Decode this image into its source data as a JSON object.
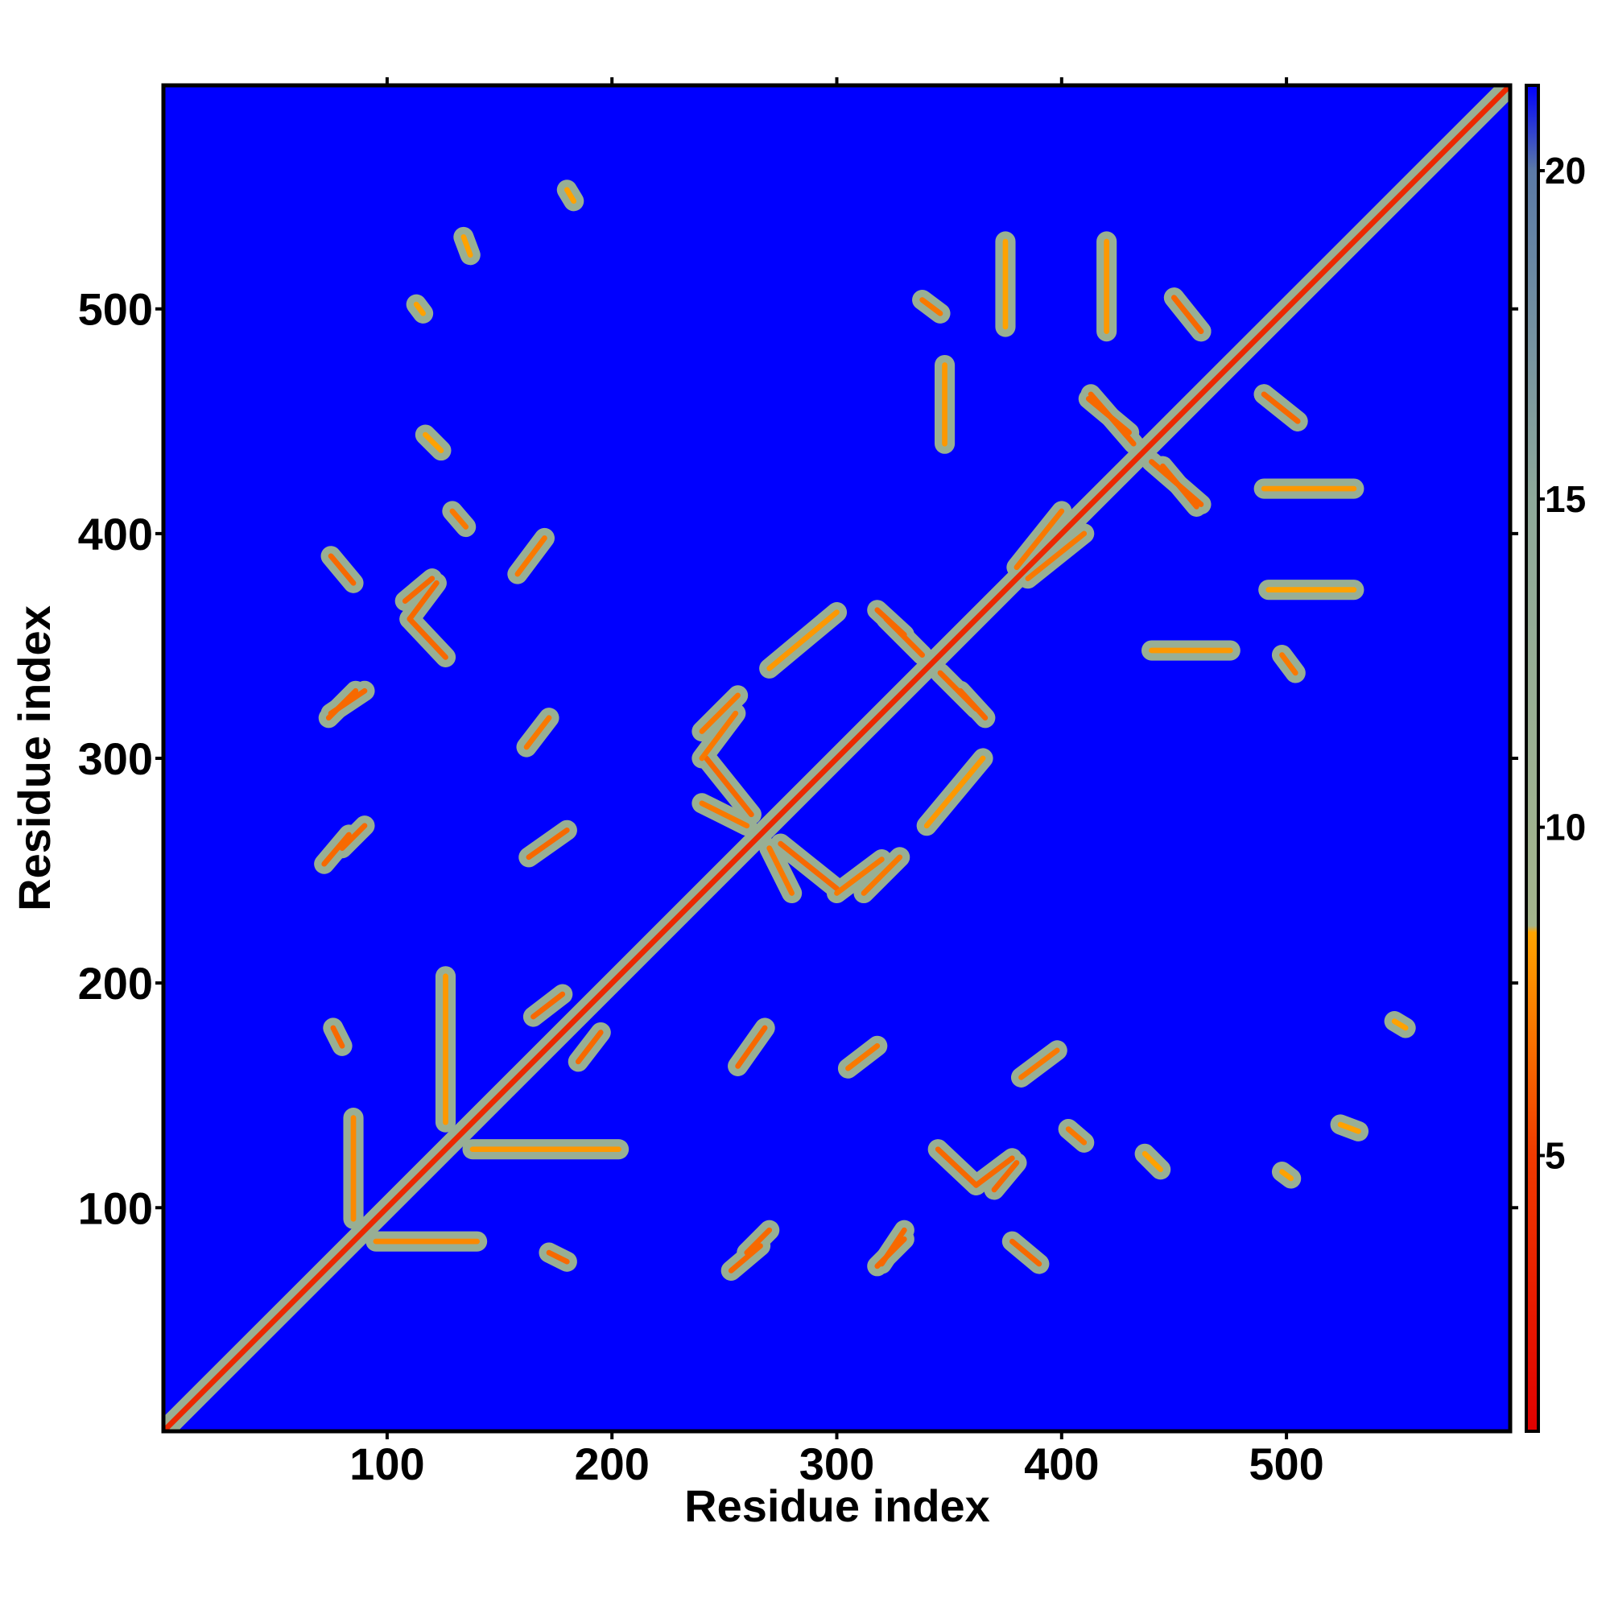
{
  "chart_data": {
    "type": "contact_map",
    "x_label": "Residue index",
    "y_label": "Residue index",
    "xlim": [
      0.5,
      599.5
    ],
    "ylim": [
      0.5,
      599.5
    ],
    "xticks": [
      100,
      200,
      300,
      400,
      500
    ],
    "yticks": [
      100,
      200,
      300,
      400,
      500
    ],
    "clim": [
      0.8,
      21.3
    ],
    "cticks": [
      5,
      10,
      15,
      20
    ],
    "colorscale": [
      [
        0.8,
        "#e00000"
      ],
      [
        5,
        "#f03a00"
      ],
      [
        8.4,
        "#ffa500"
      ],
      [
        8.5,
        "#a4b58c"
      ],
      [
        15,
        "#8ea99a"
      ],
      [
        20,
        "#5b7aa6"
      ],
      [
        21.3,
        "#0000ff"
      ]
    ],
    "background_value": 21.3,
    "halo_value": 12,
    "symmetric": true,
    "contacts": [
      [
        0.5,
        0.5,
        599.5,
        599.5,
        3.8
      ],
      [
        253,
        72,
        266,
        83,
        6.5
      ],
      [
        318,
        74,
        330,
        86,
        6.5
      ],
      [
        345,
        126,
        362,
        110,
        6.5
      ],
      [
        362,
        110,
        378,
        122,
        6.5
      ],
      [
        403,
        135,
        410,
        129,
        7
      ],
      [
        256,
        163,
        268,
        180,
        6.5
      ],
      [
        305,
        162,
        318,
        172,
        7
      ],
      [
        382,
        158,
        398,
        170,
        7
      ],
      [
        275,
        262,
        300,
        242,
        6.5
      ],
      [
        312,
        240,
        328,
        256,
        7
      ],
      [
        322,
        362,
        338,
        346,
        6.5
      ],
      [
        355,
        330,
        366,
        318,
        6.5
      ],
      [
        413,
        462,
        432,
        440,
        6.5
      ],
      [
        445,
        430,
        460,
        412,
        6.5
      ],
      [
        450,
        505,
        462,
        490,
        6.5
      ],
      [
        490,
        462,
        505,
        450,
        6.5
      ],
      [
        490,
        420,
        530,
        420,
        8
      ],
      [
        492,
        375,
        530,
        375,
        8.3
      ],
      [
        440,
        348,
        475,
        348,
        8
      ],
      [
        498,
        346,
        504,
        338,
        7
      ],
      [
        524,
        137,
        532,
        134,
        8.3
      ],
      [
        548,
        183,
        553,
        180,
        8.3
      ],
      [
        498,
        116,
        502,
        113,
        8.3
      ],
      [
        437,
        124,
        444,
        117,
        8.3
      ],
      [
        95,
        85,
        140,
        85,
        7.5
      ],
      [
        172,
        80,
        180,
        76,
        6.5
      ],
      [
        138,
        126,
        203,
        126,
        8
      ],
      [
        185,
        165,
        195,
        178,
        6.5
      ],
      [
        340,
        270,
        365,
        300,
        8
      ],
      [
        75,
        320,
        90,
        330,
        6.5
      ],
      [
        75,
        390,
        85,
        378,
        6.5
      ],
      [
        80,
        260,
        90,
        270,
        6.5
      ],
      [
        108,
        370,
        120,
        380,
        6.5
      ],
      [
        240,
        300,
        255,
        320,
        7
      ],
      [
        240,
        280,
        260,
        270,
        7
      ],
      [
        385,
        380,
        410,
        400,
        7
      ]
    ]
  }
}
